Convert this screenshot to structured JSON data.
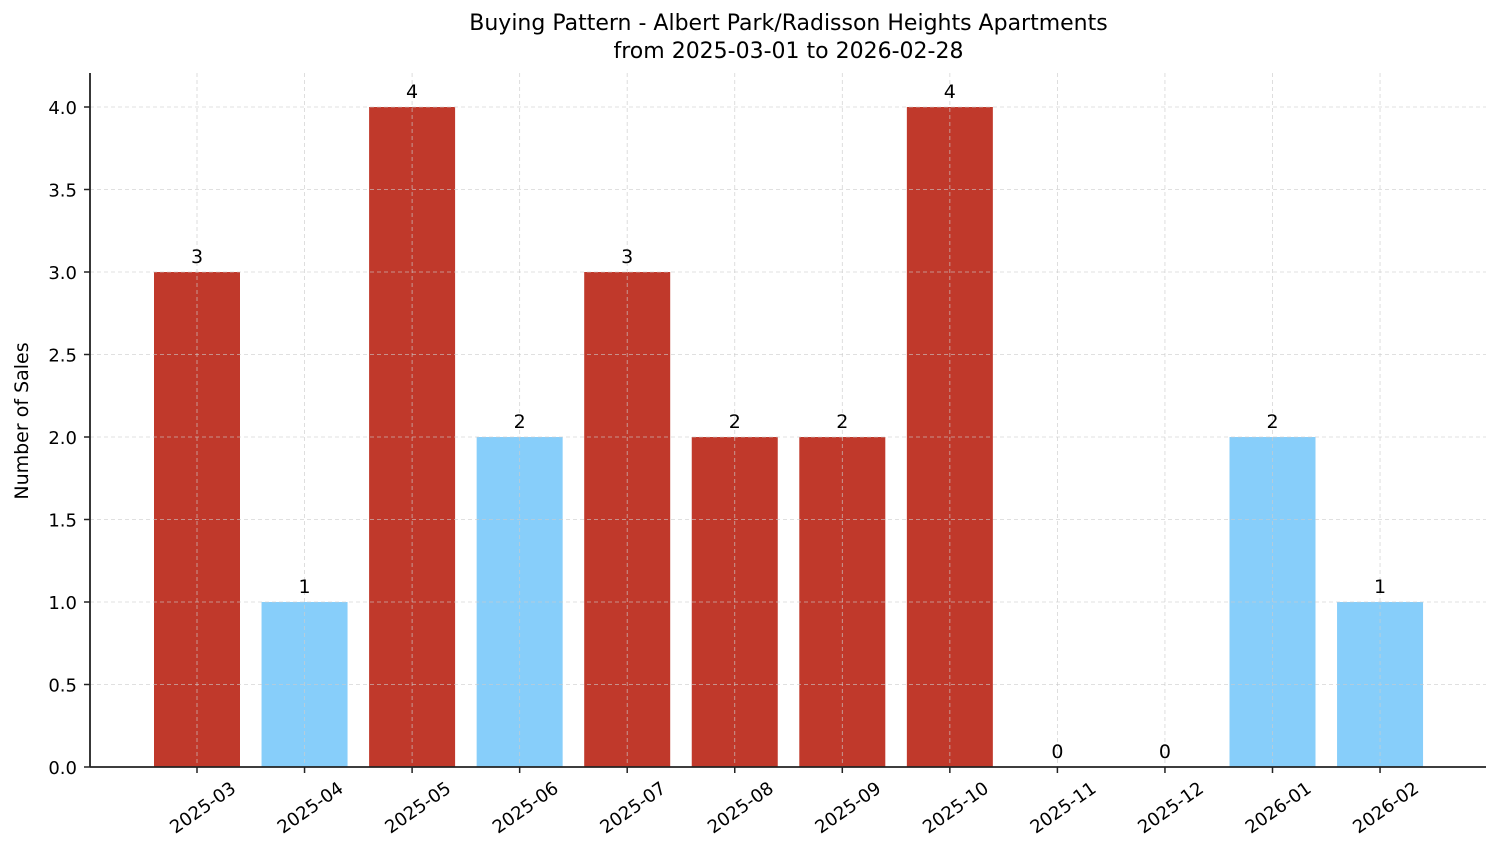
{
  "chart_data": {
    "type": "bar",
    "title": "Buying Pattern - Albert Park/Radisson Heights Apartments",
    "subtitle": "from 2025-03-01 to 2026-02-28",
    "xlabel": "",
    "ylabel": "Number of Sales",
    "ylim": [
      0,
      4.2
    ],
    "yticks": [
      "0.0",
      "0.5",
      "1.0",
      "1.5",
      "2.0",
      "2.5",
      "3.0",
      "3.5",
      "4.0"
    ],
    "grid": true,
    "categories": [
      "2025-03",
      "2025-04",
      "2025-05",
      "2025-06",
      "2025-07",
      "2025-08",
      "2025-09",
      "2025-10",
      "2025-11",
      "2025-12",
      "2026-01",
      "2026-02"
    ],
    "values": [
      3,
      1,
      4,
      2,
      3,
      2,
      2,
      4,
      0,
      0,
      2,
      1
    ],
    "bar_colors": [
      "#c0392b",
      "#87cefa",
      "#c0392b",
      "#87cefa",
      "#c0392b",
      "#c0392b",
      "#c0392b",
      "#c0392b",
      "#87cefa",
      "#87cefa",
      "#87cefa",
      "#87cefa"
    ],
    "data_labels": [
      "3",
      "1",
      "4",
      "2",
      "3",
      "2",
      "2",
      "4",
      "0",
      "0",
      "2",
      "1"
    ],
    "colors": {
      "high": "#c0392b",
      "low": "#87cefa"
    }
  }
}
